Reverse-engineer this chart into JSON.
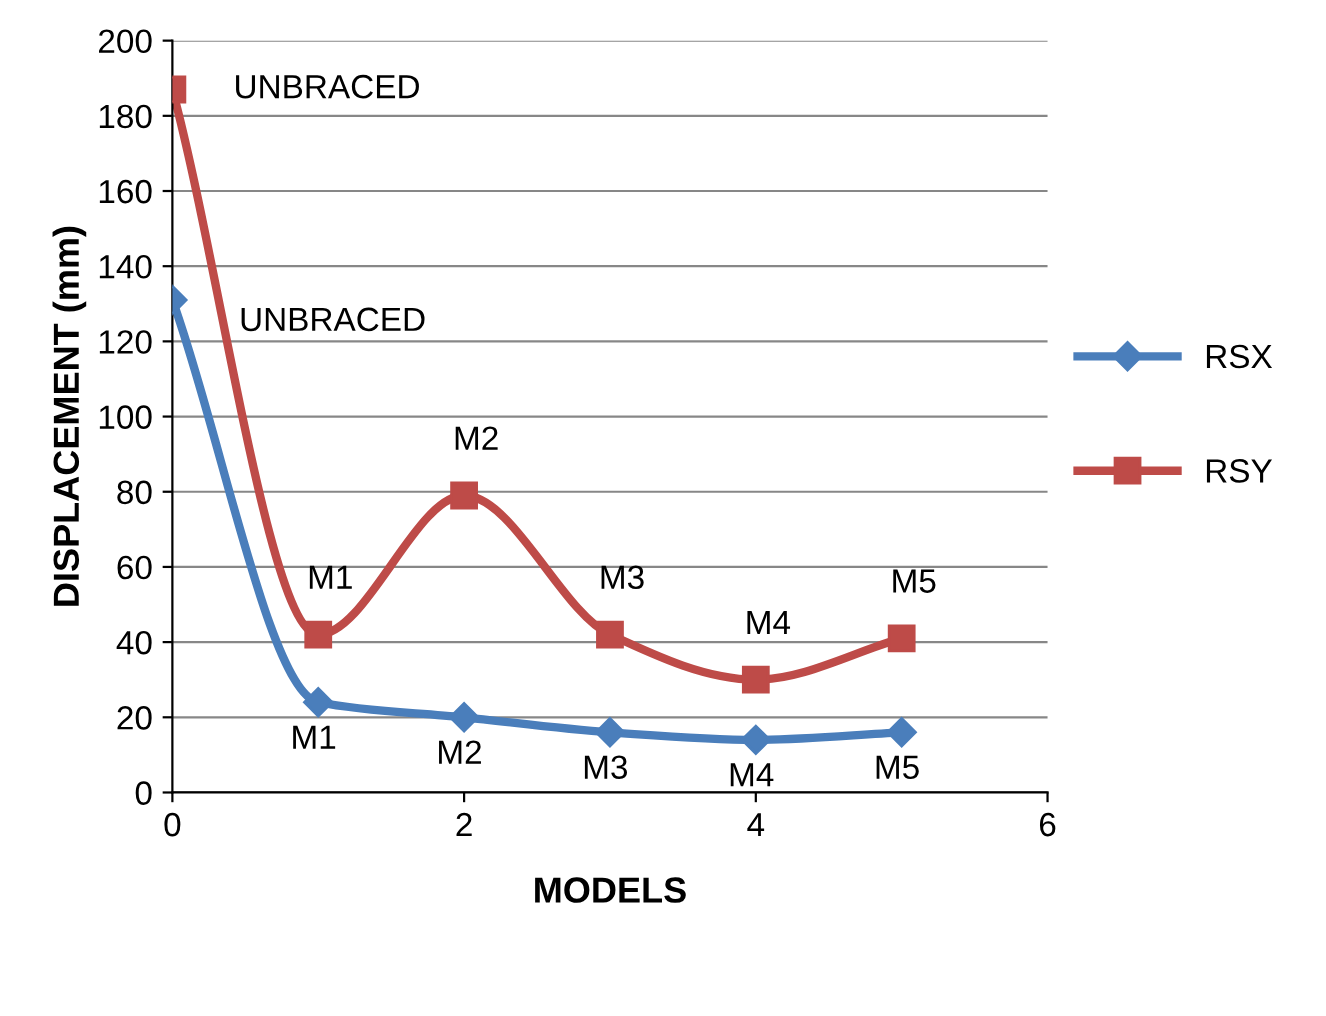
{
  "chart_data": {
    "type": "line",
    "xlabel": "MODELS",
    "ylabel": "DISPLACEMENT (mm)",
    "x": [
      0,
      1,
      2,
      3,
      4,
      5
    ],
    "series": [
      {
        "name": "RSX",
        "color": "#4a7ebb",
        "values": [
          131,
          24,
          20,
          16,
          14,
          16
        ],
        "marker": "diamond"
      },
      {
        "name": "RSY",
        "color": "#be4b48",
        "values": [
          187,
          42,
          79,
          42,
          30,
          41
        ],
        "marker": "square"
      }
    ],
    "xlim": [
      0,
      6
    ],
    "xticks": [
      0,
      2,
      4,
      6
    ],
    "ylim": [
      0,
      200
    ],
    "yticks": [
      0,
      20,
      40,
      60,
      80,
      100,
      120,
      140,
      160,
      180,
      200
    ],
    "grid": "y",
    "legend": "right",
    "line_style": "solid",
    "annotations": [
      {
        "text": "UNBRACED",
        "x": 0,
        "y": 131
      },
      {
        "text": "M1",
        "x": 1,
        "y": 24
      },
      {
        "text": "M2",
        "x": 2,
        "y": 20
      },
      {
        "text": "M3",
        "x": 3,
        "y": 16
      },
      {
        "text": "M4",
        "x": 4,
        "y": 14
      },
      {
        "text": "M5",
        "x": 5,
        "y": 16
      },
      {
        "text": "UNBRACED",
        "x": 0,
        "y": 187
      },
      {
        "text": "M1",
        "x": 1,
        "y": 42
      },
      {
        "text": "M2",
        "x": 2,
        "y": 79
      },
      {
        "text": "M3",
        "x": 3,
        "y": 42
      },
      {
        "text": "M4",
        "x": 4,
        "y": 30
      },
      {
        "text": "M5",
        "x": 5,
        "y": 41
      }
    ]
  }
}
